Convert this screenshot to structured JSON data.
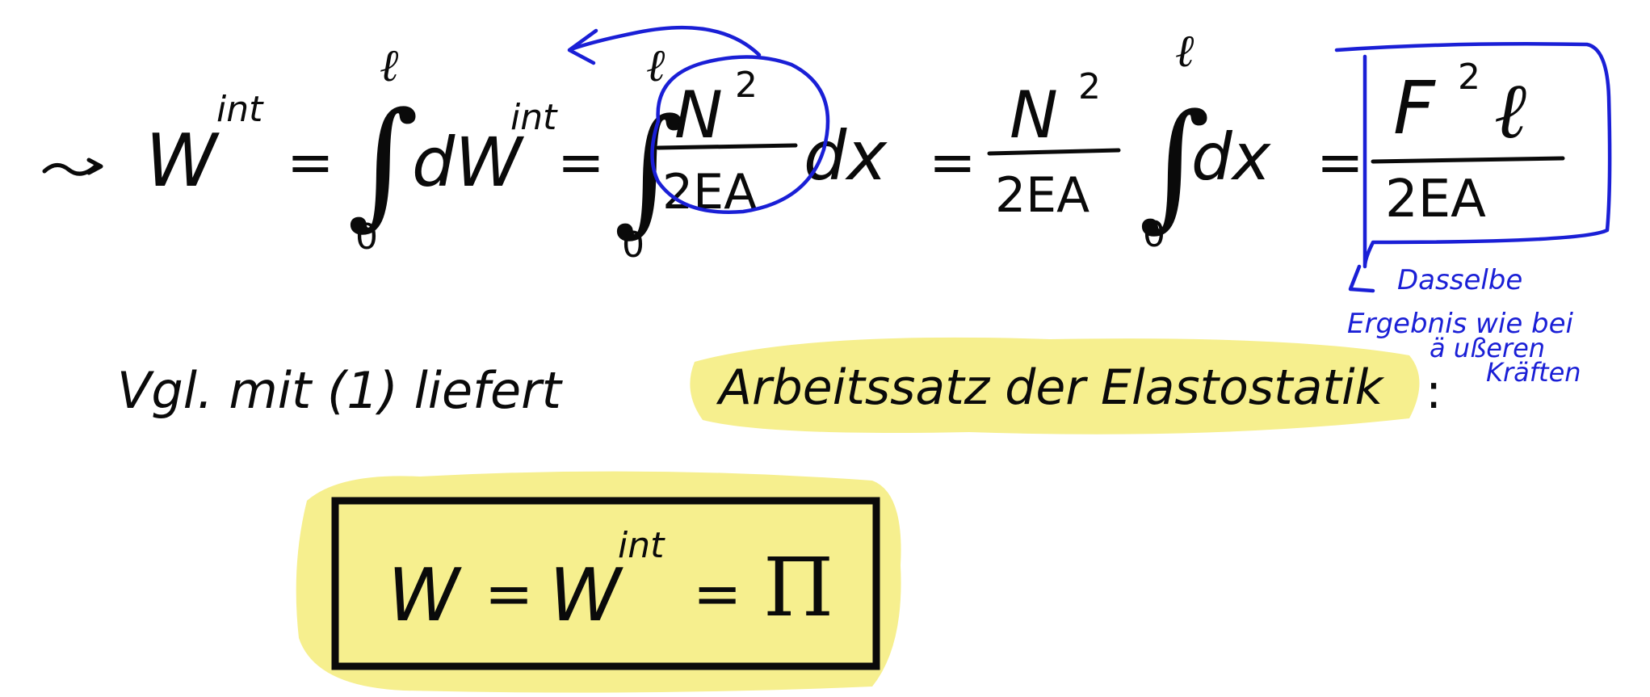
{
  "equation1": {
    "arrow": "~>",
    "w_int_lhs": "W",
    "sup_int": "int",
    "eq": "=",
    "upper_limit": "ℓ",
    "lower_limit": "0",
    "integral": "∫",
    "dW": "dW",
    "N2": "N",
    "sup2": "2",
    "denom": "2EA",
    "dx": "dx",
    "F": "F",
    "l": "ℓ"
  },
  "annotation_blue": {
    "line1": "Dasselbe",
    "line2": "Ergebnis wie bei",
    "line3": "ä ußeren",
    "line4": "Kräften"
  },
  "sentence": {
    "prefix": "Vgl. mit (1) liefert",
    "highlighted": "Arbeitssatz der Elastostatik",
    "suffix": ":"
  },
  "boxed_result": {
    "W": "W",
    "eq1": "=",
    "W_int": "W",
    "sup_int": "int",
    "eq2": "=",
    "Pi": "Π"
  },
  "colors": {
    "ink": "#0a0a0a",
    "blue_ink": "#1a1fd6",
    "highlight": "#f6ef8e"
  }
}
